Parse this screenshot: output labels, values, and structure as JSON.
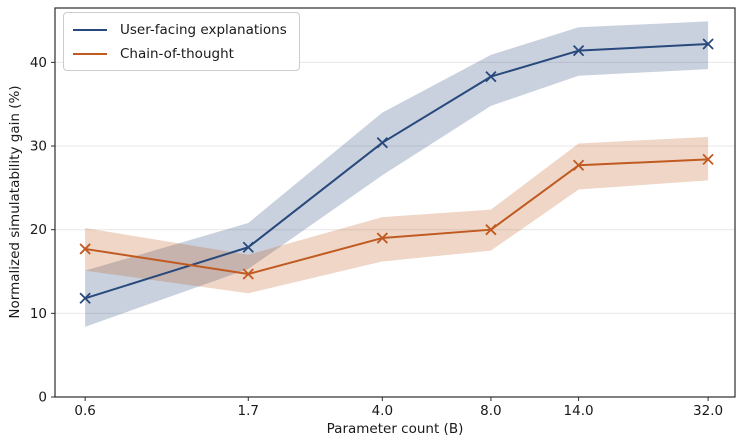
{
  "figure": {
    "background_color": "#ffffff",
    "spine_color": "#2b2b2b",
    "grid_color": "#e7e7e7",
    "tick_text_color": "#1a1a1a"
  },
  "chart_data": {
    "type": "line",
    "title": "",
    "xlabel": "Parameter count (B)",
    "ylabel": "Normalized simulatability gain (%)",
    "x_scale": "log",
    "xlim": [
      0.495,
      38
    ],
    "ylim": [
      0,
      46.5
    ],
    "x": [
      0.6,
      1.7,
      4.0,
      8.0,
      14.0,
      32.0
    ],
    "x_tick_labels": [
      "0.6",
      "1.7",
      "4.0",
      "8.0",
      "14.0",
      "32.0"
    ],
    "y_ticks": [
      0,
      10,
      20,
      30,
      40
    ],
    "grid": "horizontal",
    "marker": "x",
    "legend_position": "upper-left",
    "series": [
      {
        "name": "User-facing explanations",
        "color": "#28497c",
        "band_opacity": 0.25,
        "values": [
          11.8,
          17.9,
          30.4,
          38.3,
          41.4,
          42.2
        ],
        "band_lower": [
          8.4,
          15.3,
          26.5,
          34.8,
          38.4,
          39.2
        ],
        "band_upper": [
          15.1,
          20.8,
          34.0,
          40.9,
          44.2,
          44.9
        ]
      },
      {
        "name": "Chain-of-thought",
        "color": "#c05a20",
        "band_opacity": 0.25,
        "values": [
          17.7,
          14.7,
          19.0,
          20.0,
          27.7,
          28.4
        ],
        "band_lower": [
          15.1,
          12.4,
          16.2,
          17.5,
          24.8,
          25.9
        ],
        "band_upper": [
          20.2,
          17.0,
          21.5,
          22.4,
          30.3,
          31.1
        ]
      }
    ]
  }
}
